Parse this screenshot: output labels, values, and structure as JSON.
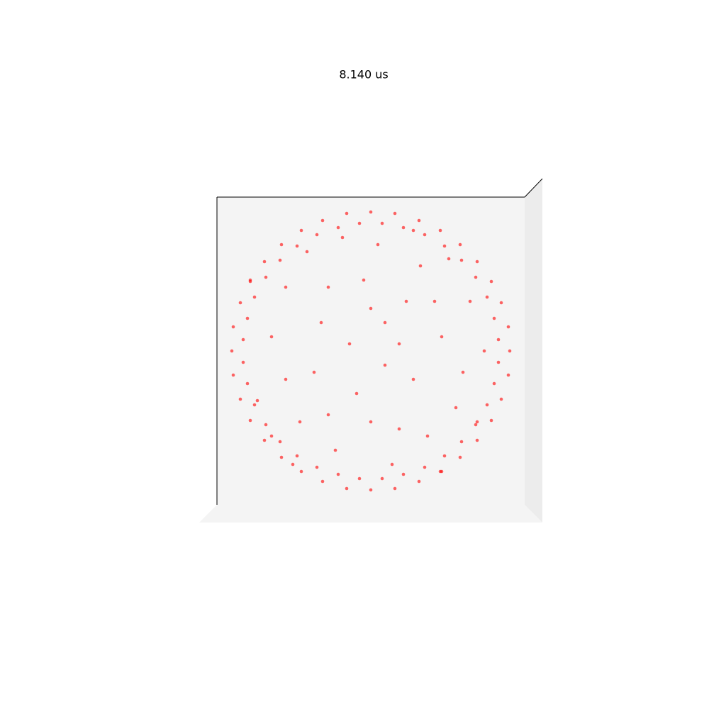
{
  "chart_data": {
    "type": "scatter",
    "title": "8.140 us",
    "color": "#ff0000",
    "xlim": [
      -1.085,
      1.085
    ],
    "ylim": [
      -1.085,
      1.085
    ],
    "x": [
      0.98,
      0.97,
      0.92,
      0.85,
      0.75,
      0.63,
      0.49,
      0.34,
      0.17,
      0,
      -0.17,
      -0.34,
      -0.49,
      -0.63,
      -0.75,
      -0.85,
      -0.92,
      -0.97,
      -0.98,
      -0.97,
      -0.92,
      -0.85,
      -0.75,
      -0.63,
      -0.49,
      -0.34,
      -0.17,
      0,
      0.17,
      0.34,
      0.49,
      0.63,
      0.75,
      0.85,
      0.92,
      0.97,
      0.9,
      0.87,
      0.82,
      0.74,
      0.64,
      0.52,
      0.38,
      0.23,
      0.08,
      -0.08,
      -0.23,
      -0.38,
      -0.52,
      -0.64,
      -0.74,
      -0.82,
      -0.87,
      -0.9,
      -0.9,
      -0.87,
      -0.82,
      -0.74,
      -0.64,
      -0.52,
      -0.38,
      -0.23,
      -0.08,
      0.08,
      0.23,
      0.38,
      0.52,
      0.64,
      0.74,
      0.82,
      0.87,
      0.9,
      0.1,
      -0.3,
      0.5,
      -0.6,
      0.2,
      -0.1,
      0.7,
      -0.45,
      0.35,
      -0.7,
      0.05,
      -0.25,
      0.6,
      -0.5,
      0.3,
      -0.15,
      0.45,
      -0.35,
      0.15,
      0.8,
      -0.8,
      0,
      0.55,
      -0.6,
      0.25,
      -0.05,
      0.4,
      -0.4,
      0.65,
      -0.2,
      0.1,
      -0.7,
      0.75,
      0.3,
      -0.55,
      0.2,
      -0.3,
      0.5,
      -0.85,
      0
    ],
    "y": [
      0,
      0.17,
      0.34,
      0.49,
      0.63,
      0.75,
      0.85,
      0.92,
      0.97,
      0.98,
      0.97,
      0.92,
      0.85,
      0.75,
      0.63,
      0.49,
      0.34,
      0.17,
      0,
      -0.17,
      -0.34,
      -0.49,
      -0.63,
      -0.75,
      -0.85,
      -0.92,
      -0.97,
      -0.98,
      -0.97,
      -0.92,
      -0.85,
      -0.75,
      -0.63,
      -0.49,
      -0.34,
      -0.17,
      0.08,
      0.23,
      0.38,
      0.52,
      0.64,
      0.74,
      0.82,
      0.87,
      0.9,
      0.9,
      0.87,
      0.82,
      0.74,
      0.64,
      0.52,
      0.38,
      0.23,
      0.08,
      -0.08,
      -0.23,
      -0.38,
      -0.52,
      -0.64,
      -0.74,
      -0.82,
      -0.87,
      -0.9,
      -0.9,
      -0.87,
      -0.82,
      -0.74,
      -0.64,
      -0.52,
      -0.38,
      -0.23,
      -0.08,
      0.2,
      0.45,
      0.1,
      -0.2,
      -0.55,
      -0.3,
      0.35,
      0.7,
      0.6,
      0.1,
      0.75,
      -0.7,
      -0.4,
      -0.5,
      -0.2,
      0.05,
      0.35,
      0.2,
      -0.8,
      0,
      -0.35,
      -0.5,
      0.65,
      0.45,
      0.35,
      0.5,
      -0.6,
      -0.15,
      -0.15,
      0.8,
      -0.1,
      -0.6,
      -0.5,
      0.85,
      -0.8,
      0.05,
      -0.45,
      -0.85,
      0.5,
      0.3
    ]
  }
}
